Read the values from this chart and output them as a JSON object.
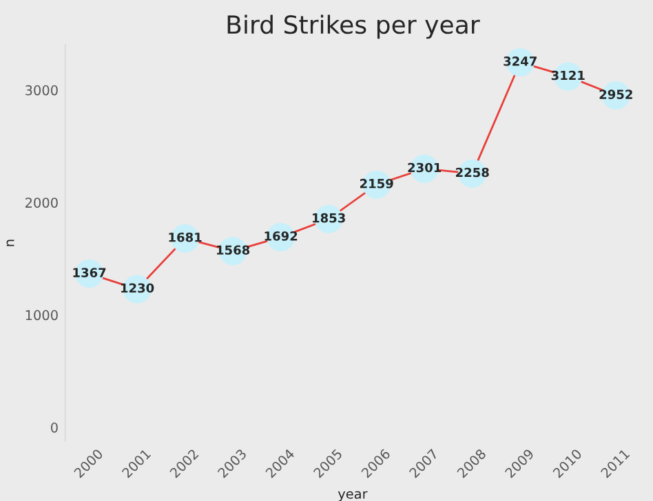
{
  "chart_data": {
    "type": "line",
    "title": "Bird Strikes per year",
    "xlabel": "year",
    "ylabel": "n",
    "categories": [
      "2000",
      "2001",
      "2002",
      "2003",
      "2004",
      "2005",
      "2006",
      "2007",
      "2008",
      "2009",
      "2010",
      "2011"
    ],
    "series": [
      {
        "color": "#e8403a",
        "values": [
          1367,
          1230,
          1681,
          1568,
          1692,
          1853,
          2159,
          2301,
          2258,
          3247,
          3121,
          2952
        ]
      }
    ],
    "marker": "circle",
    "data_labels": true,
    "grid": false,
    "ylim": [
      -120,
      3400
    ],
    "yticks": [
      0,
      1000,
      2000,
      3000
    ]
  }
}
